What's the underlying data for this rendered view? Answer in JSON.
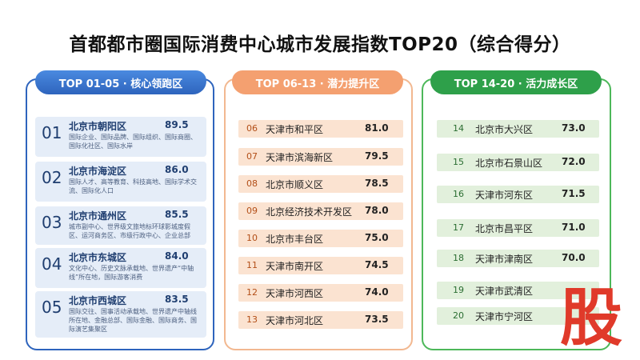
{
  "chart_data": {
    "type": "table",
    "title": "首都都市圈国际消费中心城市发展指数TOP20（综合得分）",
    "groups": [
      {
        "header": "TOP 01-05 · 核心领跑区",
        "color": "#2e64bd",
        "rows": [
          {
            "rank": "01",
            "name": "北京市朝阳区",
            "score": "89.5",
            "desc": "国际企业、国际品牌、国际组织、国际商圈、国际化社区、国际水岸"
          },
          {
            "rank": "02",
            "name": "北京市海淀区",
            "score": "86.0",
            "desc": "国际人才、高等教育、科技高地、国际学术交流、国际化人口"
          },
          {
            "rank": "03",
            "name": "北京市通州区",
            "score": "85.5",
            "desc": "城市副中心、世界级文旅地标环球影城度假区、运河商务区、市级行政中心、企业总部"
          },
          {
            "rank": "04",
            "name": "北京市东城区",
            "score": "84.0",
            "desc": "文化中心、历史文脉承载地、世界遗产“中轴线”所在地，国际游客消费"
          },
          {
            "rank": "05",
            "name": "北京市西城区",
            "score": "83.5",
            "desc": "国际交往、国事活动承载地、世界遗产中轴线所在地、金融总部、国际金融、国际商务、国际演艺集聚区"
          }
        ]
      },
      {
        "header": "TOP 06-13 · 潜力提升区",
        "color": "#f4a070",
        "rows": [
          {
            "rank": "06",
            "name": "天津市和平区",
            "score": "81.0"
          },
          {
            "rank": "07",
            "name": "天津市滨海新区",
            "score": "79.5"
          },
          {
            "rank": "08",
            "name": "北京市顺义区",
            "score": "78.5"
          },
          {
            "rank": "09",
            "name": "北京经济技术开发区",
            "score": "78.0"
          },
          {
            "rank": "10",
            "name": "北京市丰台区",
            "score": "75.0"
          },
          {
            "rank": "11",
            "name": "天津市南开区",
            "score": "74.5"
          },
          {
            "rank": "12",
            "name": "天津市河西区",
            "score": "74.0"
          },
          {
            "rank": "13",
            "name": "天津市河北区",
            "score": "73.5"
          }
        ]
      },
      {
        "header": "TOP 14-20 · 活力成长区",
        "color": "#2ea04a",
        "rows": [
          {
            "rank": "14",
            "name": "北京市大兴区",
            "score": "73.0"
          },
          {
            "rank": "15",
            "name": "北京市石景山区",
            "score": "72.0"
          },
          {
            "rank": "16",
            "name": "天津市河东区",
            "score": "71.5"
          },
          {
            "rank": "17",
            "name": "北京市昌平区",
            "score": "71.0"
          },
          {
            "rank": "18",
            "name": "天津市津南区",
            "score": "70.0"
          },
          {
            "rank": "19",
            "name": "天津市武清区",
            "score": ""
          },
          {
            "rank": "20",
            "name": "天津市宁河区",
            "score": ""
          }
        ]
      }
    ]
  },
  "watermark": "股"
}
